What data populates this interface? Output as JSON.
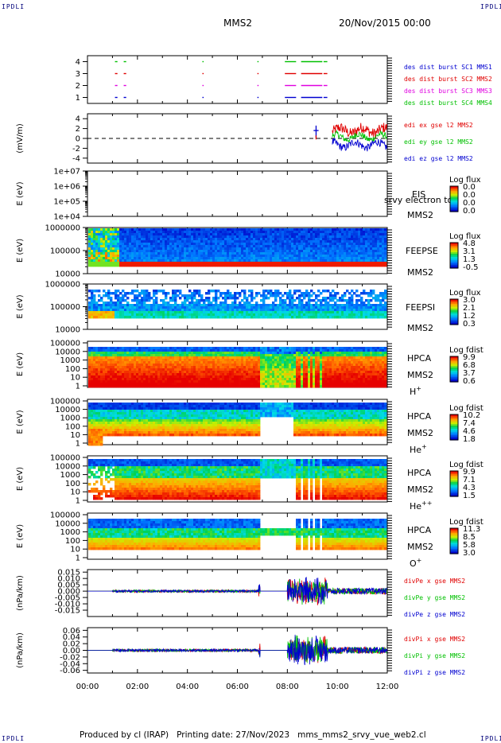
{
  "header": {
    "corner_label": "IPDLI",
    "title": "MMS2",
    "date": "20/Nov/2015 00:00"
  },
  "footer": {
    "produced_by": "Produced by cl (IRAP)",
    "printing_date": "Printing date: 27/Nov/2023",
    "file": "mms_mms2_srvy_vue_web2.cl"
  },
  "colors": {
    "red": "#e00000",
    "blue": "#0000d0",
    "green": "#00c000",
    "magenta": "#e000e0",
    "black": "#000000"
  },
  "chart_data": {
    "type": "multi-panel time series / spectrograms",
    "x_axis": {
      "range": [
        "00:00",
        "12:00"
      ],
      "tick_labels": [
        "00:00",
        "02:00",
        "04:00",
        "06:00",
        "08:00",
        "10:00",
        "12:00"
      ]
    },
    "panels": [
      {
        "id": "burst",
        "kind": "bar",
        "ylabel": "",
        "ylim": [
          0.5,
          4.5
        ],
        "tick_labels": [
          "4",
          "3",
          "2",
          "1"
        ],
        "tick_values": [
          4,
          3,
          2,
          1
        ],
        "legend": [
          {
            "label": "des dist burst SC1 MMS1",
            "color": "#0000d0"
          },
          {
            "label": "des dist burst SC2 MMS2",
            "color": "#e00000"
          },
          {
            "label": "des dist burst SC3 MMS3",
            "color": "#e000e0"
          },
          {
            "label": "des dist burst SC4 MMS4",
            "color": "#00c000"
          }
        ],
        "intervals_hours": [
          [
            1.1,
            1.2
          ],
          [
            1.45,
            1.55
          ],
          [
            4.6,
            4.65
          ],
          [
            6.8,
            6.85
          ],
          [
            7.9,
            8.35
          ],
          [
            8.55,
            9.4
          ],
          [
            9.45,
            9.6
          ]
        ]
      },
      {
        "id": "edi",
        "kind": "line",
        "ylabel": "(mV/m)",
        "ylim": [
          -5,
          5
        ],
        "tick_labels": [
          "4",
          "2",
          "0",
          "-2",
          "-4"
        ],
        "tick_values": [
          4,
          2,
          0,
          -2,
          -4
        ],
        "dashed_zero": true,
        "legend": [
          {
            "label": "edi ex gse l2 MMS2",
            "color": "#e00000"
          },
          {
            "label": "edi ey gse l2 MMS2",
            "color": "#00c000"
          },
          {
            "label": "edi ez gse l2 MMS2",
            "color": "#0000d0"
          }
        ]
      },
      {
        "id": "eis",
        "kind": "spectrogram",
        "ylabel": "E (eV)",
        "tick_labels": [
          "1e+07",
          "1e+06",
          "1e+05",
          "1e+04"
        ],
        "instrument": "EIS",
        "sub_label": "srvy electron to",
        "spacecraft": "MMS2",
        "colorbar_title": "Log flux",
        "colorbar_labels": [
          "0.0",
          "0.0",
          "0.0",
          "0.0"
        ]
      },
      {
        "id": "feepse",
        "kind": "spectrogram",
        "ylabel": "E (eV)",
        "tick_labels": [
          "1000000",
          "100000",
          "10000"
        ],
        "instrument": "FEEPSE",
        "spacecraft": "MMS2",
        "colorbar_title": "Log flux",
        "colorbar_labels": [
          "4.8",
          "3.1",
          "1.3",
          "-0.5"
        ]
      },
      {
        "id": "feepsi",
        "kind": "spectrogram",
        "ylabel": "E (eV)",
        "tick_labels": [
          "1000000",
          "100000",
          "10000"
        ],
        "instrument": "FEEPSI",
        "spacecraft": "MMS2",
        "colorbar_title": "Log flux",
        "colorbar_labels": [
          "3.0",
          "2.1",
          "1.2",
          "0.3"
        ]
      },
      {
        "id": "hpca_h",
        "kind": "spectrogram",
        "ylabel": "E (eV)",
        "tick_labels": [
          "100000",
          "10000",
          "1000",
          "100",
          "10",
          "1"
        ],
        "instrument": "HPCA",
        "spacecraft": "MMS2",
        "species": "H",
        "species_charge": "+",
        "colorbar_title": "Log fdist",
        "colorbar_labels": [
          "9.9",
          "6.8",
          "3.7",
          "0.6"
        ]
      },
      {
        "id": "hpca_he",
        "kind": "spectrogram",
        "ylabel": "E (eV)",
        "tick_labels": [
          "100000",
          "10000",
          "1000",
          "100",
          "10",
          "1"
        ],
        "instrument": "HPCA",
        "spacecraft": "MMS2",
        "species": "He",
        "species_charge": "+",
        "colorbar_title": "Log fdist",
        "colorbar_labels": [
          "10.2",
          "7.4",
          "4.6",
          "1.8"
        ]
      },
      {
        "id": "hpca_hepp",
        "kind": "spectrogram",
        "ylabel": "E (eV)",
        "tick_labels": [
          "100000",
          "10000",
          "1000",
          "100",
          "10",
          "1"
        ],
        "instrument": "HPCA",
        "spacecraft": "MMS2",
        "species": "He",
        "species_charge": "++",
        "colorbar_title": "Log fdist",
        "colorbar_labels": [
          "9.9",
          "7.1",
          "4.3",
          "1.5"
        ]
      },
      {
        "id": "hpca_o",
        "kind": "spectrogram",
        "ylabel": "E (eV)",
        "tick_labels": [
          "100000",
          "10000",
          "1000",
          "100",
          "10",
          "1"
        ],
        "instrument": "HPCA",
        "spacecraft": "MMS2",
        "species": "O",
        "species_charge": "+",
        "colorbar_title": "Log fdist",
        "colorbar_labels": [
          "11.3",
          "8.5",
          "5.8",
          "3.0"
        ]
      },
      {
        "id": "divpe",
        "kind": "line",
        "ylabel": "(nPa/km)",
        "ylim": [
          -0.02,
          0.017
        ],
        "tick_labels": [
          "0.015",
          "0.010",
          "0.005",
          "0.000",
          "-0.005",
          "-0.010",
          "-0.015"
        ],
        "tick_values": [
          0.015,
          0.01,
          0.005,
          0.0,
          -0.005,
          -0.01,
          -0.015
        ],
        "legend": [
          {
            "label": "divPe x gse MMS2",
            "color": "#e00000"
          },
          {
            "label": "divPe y gse MMS2",
            "color": "#00c000"
          },
          {
            "label": "divPe z gse MMS2",
            "color": "#0000d0"
          }
        ]
      },
      {
        "id": "divpi",
        "kind": "line",
        "ylabel": "(nPa/km)",
        "ylim": [
          -0.068,
          0.068
        ],
        "tick_labels": [
          "0.06",
          "0.04",
          "0.02",
          "0.00",
          "-0.02",
          "-0.04",
          "-0.06"
        ],
        "tick_values": [
          0.06,
          0.04,
          0.02,
          0.0,
          -0.02,
          -0.04,
          -0.06
        ],
        "legend": [
          {
            "label": "divPi x gse MMS2",
            "color": "#e00000"
          },
          {
            "label": "divPi y gse MMS2",
            "color": "#00c000"
          },
          {
            "label": "divPi z gse MMS2",
            "color": "#0000d0"
          }
        ]
      }
    ]
  }
}
